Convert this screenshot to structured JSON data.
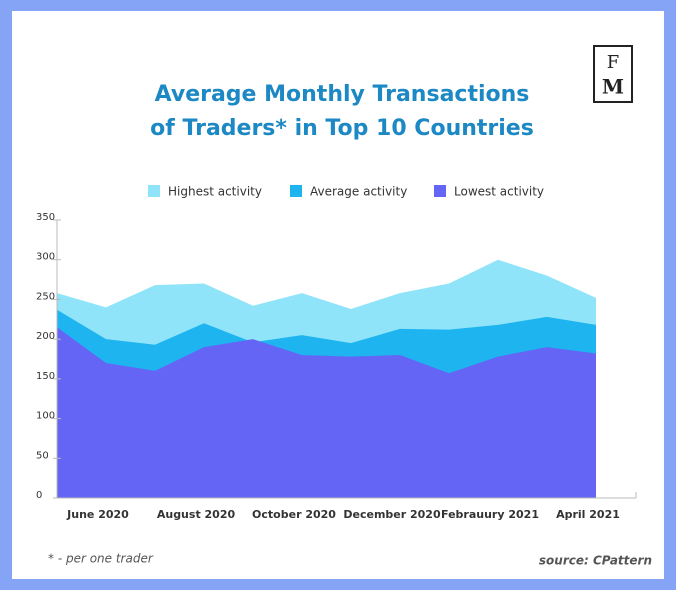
{
  "chart_data": {
    "type": "area",
    "title": [
      "Average Monthly Transactions",
      "of Traders* in Top 10 Countries"
    ],
    "categories": [
      null,
      "June 2020",
      null,
      "August 2020",
      null,
      "October 2020",
      null,
      "December 2020",
      null,
      "Febrauury 2021",
      null,
      "April 2021"
    ],
    "series": [
      {
        "name": "Highest activity",
        "color": "#8fe4fa",
        "values": [
          258,
          240,
          268,
          270,
          242,
          258,
          238,
          258,
          270,
          300,
          280,
          252
        ]
      },
      {
        "name": "Average activity",
        "color": "#1db4f0",
        "values": [
          237,
          200,
          193,
          220,
          196,
          205,
          195,
          213,
          212,
          218,
          228,
          218
        ]
      },
      {
        "name": "Lowest activity",
        "color": "#6565f5",
        "values": [
          215,
          170,
          160,
          190,
          200,
          180,
          178,
          180,
          157,
          178,
          190,
          182
        ]
      }
    ],
    "ylim": [
      0,
      350
    ],
    "yticks": [
      0,
      50,
      100,
      150,
      200,
      250,
      300,
      350
    ],
    "grid": false,
    "legend": "top"
  },
  "logo": [
    "F",
    "M"
  ],
  "footnote": "* - per one trader",
  "source": "source: CPattern"
}
